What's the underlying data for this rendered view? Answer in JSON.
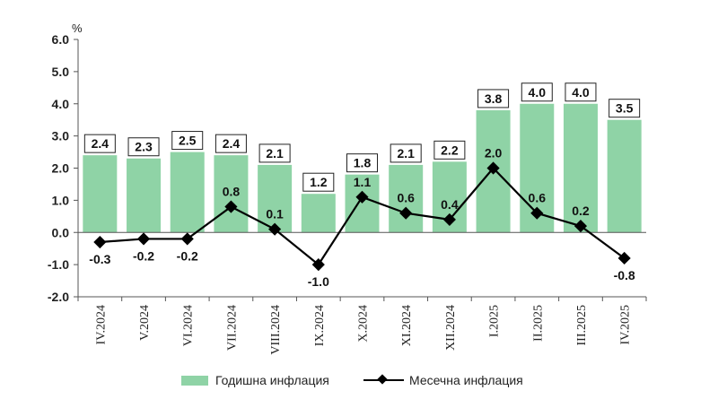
{
  "chart_data": {
    "type": "bar",
    "categories": [
      "IV.2024",
      "V.2024",
      "VI.2024",
      "VII.2024",
      "VIII.2024",
      "IX.2024",
      "X.2024",
      "XI.2024",
      "XII.2024",
      "I.2025",
      "II.2025",
      "III.2025",
      "IV.2025"
    ],
    "series": [
      {
        "name": "Годишна инфлация",
        "type": "bar",
        "color": "#8fd3a6",
        "values": [
          2.4,
          2.3,
          2.5,
          2.4,
          2.1,
          1.2,
          1.8,
          2.1,
          2.2,
          3.8,
          4.0,
          4.0,
          3.5
        ],
        "labels": [
          "2.4",
          "2.3",
          "2.5",
          "2.4",
          "2.1",
          "1.2",
          "1.8",
          "2.1",
          "2.2",
          "3.8",
          "4.0",
          "4.0",
          "3.5"
        ]
      },
      {
        "name": "Месечна инфлация",
        "type": "line",
        "color": "#000000",
        "values": [
          -0.3,
          -0.2,
          -0.2,
          0.8,
          0.1,
          -1.0,
          1.1,
          0.6,
          0.4,
          2.0,
          0.6,
          0.2,
          -0.8
        ],
        "labels": [
          "-0.3",
          "-0.2",
          "-0.2",
          "0.8",
          "0.1",
          "-1.0",
          "1.1",
          "0.6",
          "0.4",
          "2.0",
          "0.6",
          "0.2",
          "-0.8"
        ]
      }
    ],
    "yunit": "%",
    "ylim": [
      -2.0,
      6.0
    ],
    "yticks": [
      "-2.0",
      "-1.0",
      "0.0",
      "1.0",
      "2.0",
      "3.0",
      "4.0",
      "5.0",
      "6.0"
    ],
    "grid": false,
    "legend": "bottom"
  }
}
